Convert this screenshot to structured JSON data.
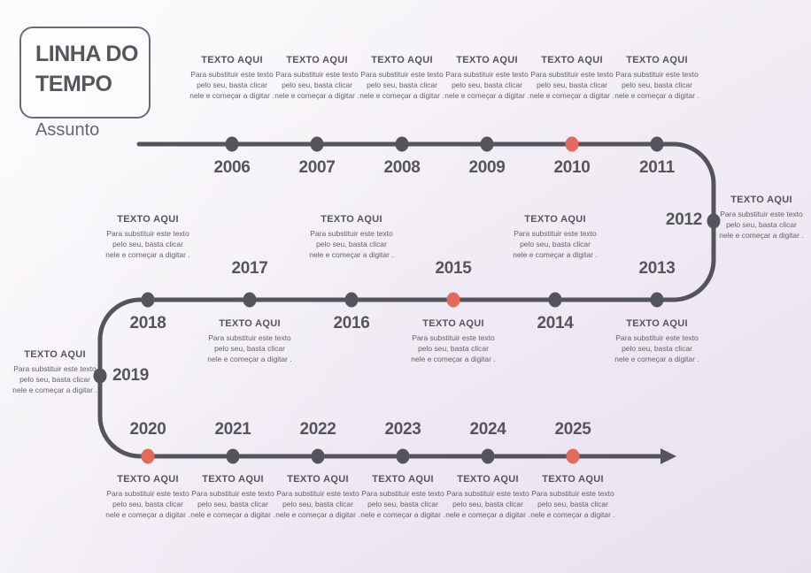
{
  "slide": {
    "title_line1": "LINHA DO",
    "title_line2": "TEMPO",
    "subtitle": "Assunto"
  },
  "placeholder": {
    "heading": "TEXTO AQUI",
    "body": "Para substituir este texto pelo seu, basta clicar nele e começar a digitar ."
  },
  "colors": {
    "background_start": "#fbf9fb",
    "background_mid": "#f2edf5",
    "background_end": "#e9e0ef",
    "rail": "#54545c",
    "dot": "#54545c",
    "dot_accent": "#e3695c",
    "year_text": "#55555d",
    "heading_text": "#55555d",
    "body_text": "#62626a"
  },
  "timeline": {
    "row1_years": [
      "2006",
      "2007",
      "2008",
      "2009",
      "2010",
      "2011"
    ],
    "right_corner_year": "2012",
    "row2_years": [
      "2013",
      "2014",
      "2015",
      "2016",
      "2017",
      "2018"
    ],
    "left_corner_year": "2019",
    "row3_years": [
      "2020",
      "2021",
      "2022",
      "2023",
      "2024",
      "2025"
    ],
    "accent_years": [
      "2010",
      "2015",
      "2020",
      "2025"
    ]
  }
}
